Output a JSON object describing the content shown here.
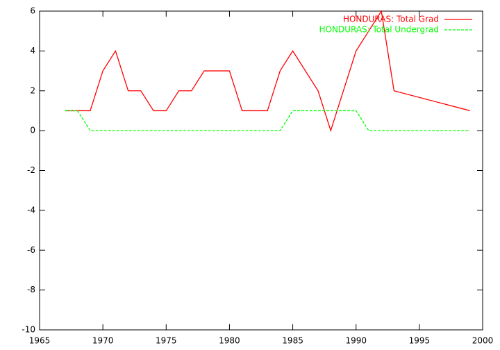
{
  "chart_data": {
    "type": "line",
    "series": [
      {
        "name": "HONDURAS: Total Grad",
        "color": "#ff0000",
        "dash": false,
        "x": [
          1967,
          1968,
          1969,
          1970,
          1971,
          1972,
          1973,
          1974,
          1975,
          1976,
          1977,
          1978,
          1979,
          1980,
          1981,
          1982,
          1983,
          1984,
          1985,
          1987,
          1988,
          1990,
          1992,
          1993,
          1999
        ],
        "values": [
          1,
          1,
          1,
          3,
          4,
          2,
          2,
          1,
          1,
          2,
          2,
          3,
          3,
          3,
          1,
          1,
          1,
          3,
          4,
          2,
          0,
          4,
          6,
          2,
          1
        ]
      },
      {
        "name": "HONDURAS: Total Undergrad",
        "color": "#00ff00",
        "dash": true,
        "x": [
          1967,
          1968,
          1969,
          1984,
          1985,
          1990,
          1991,
          1999
        ],
        "values": [
          1,
          1,
          0,
          0,
          1,
          1,
          0,
          0
        ]
      }
    ],
    "xlim": [
      1965,
      2000
    ],
    "xticks": [
      1965,
      1970,
      1975,
      1980,
      1985,
      1990,
      1995,
      2000
    ],
    "ylim": [
      -10,
      6
    ],
    "yticks": [
      -10,
      -8,
      -6,
      -4,
      -2,
      0,
      2,
      4,
      6
    ],
    "legend": "top-right"
  }
}
